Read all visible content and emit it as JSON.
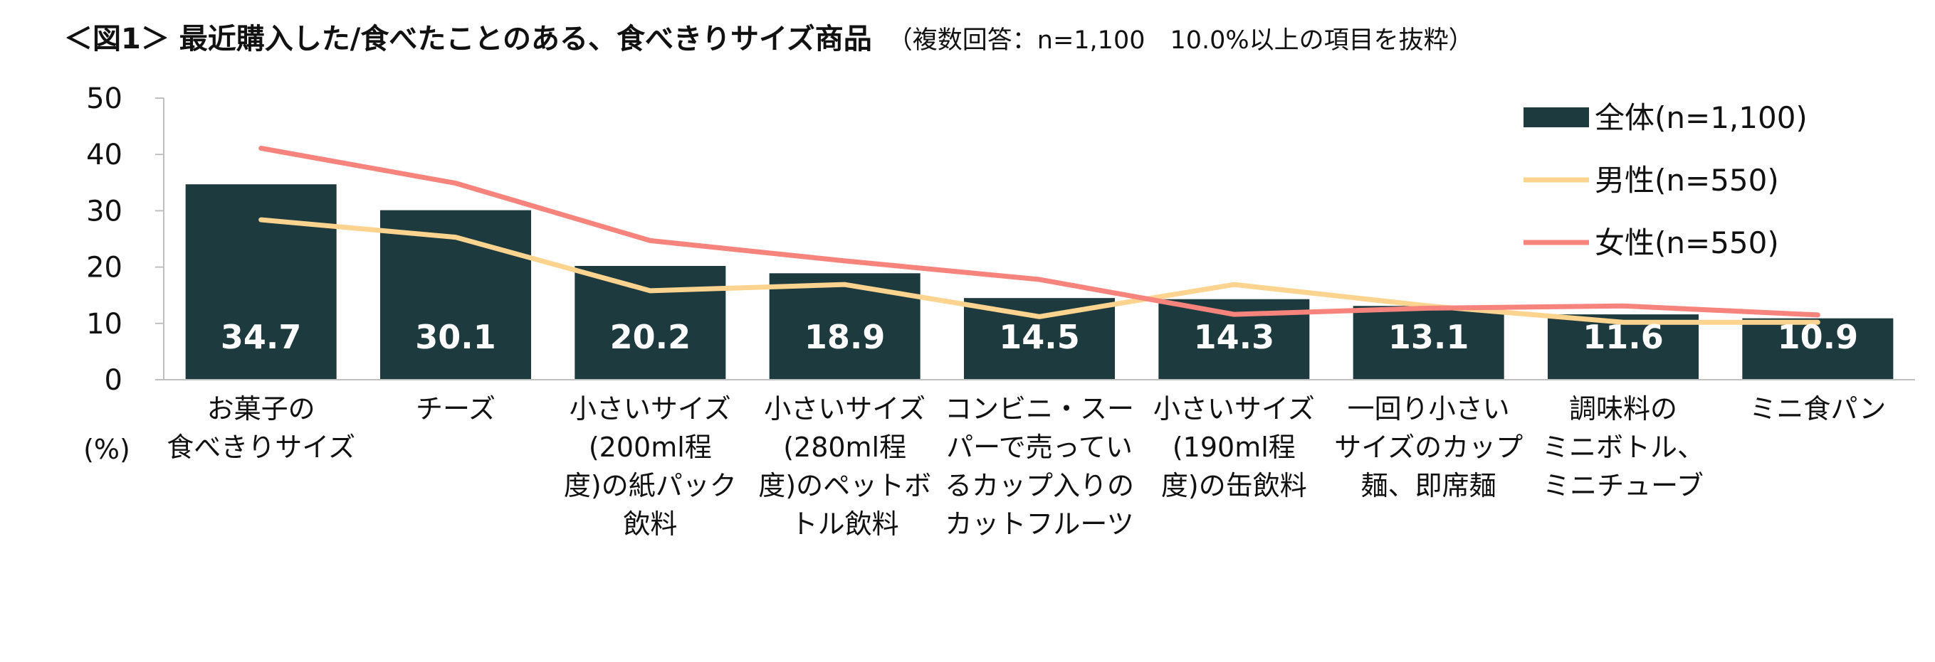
{
  "title": "＜図1＞ 最近購入した/食べたことのある、食べきりサイズ商品",
  "subtitle": "（複数回答：n=1,100　10.0%以上の項目を抜粋）",
  "unit_label": "(%)",
  "colors": {
    "bar": "#1d3a3e",
    "male": "#fcd48f",
    "female": "#f7837d",
    "axis": "#bfbfbf",
    "bar_label": "#ffffff"
  },
  "chart_data": {
    "type": "bar",
    "categories": [
      [
        "お菓子の",
        "食べきりサイズ"
      ],
      [
        "チーズ"
      ],
      [
        "小さいサイズ",
        "(200ml程",
        "度)の紙パック",
        "飲料"
      ],
      [
        "小さいサイズ",
        "(280ml程",
        "度)のペットボ",
        "トル飲料"
      ],
      [
        "コンビニ・スー",
        "パーで売ってい",
        "るカップ入りの",
        "カットフルーツ"
      ],
      [
        "小さいサイズ",
        "(190ml程",
        "度)の缶飲料"
      ],
      [
        "一回り小さい",
        "サイズのカップ",
        "麺、即席麺"
      ],
      [
        "調味料の",
        "ミニボトル、",
        "ミニチューブ"
      ],
      [
        "ミニ食パン"
      ]
    ],
    "series": [
      {
        "name": "全体(n=1,100)",
        "kind": "bar",
        "values": [
          34.7,
          30.1,
          20.2,
          18.9,
          14.5,
          14.3,
          13.1,
          11.6,
          10.9
        ]
      },
      {
        "name": "男性(n=550)",
        "kind": "line",
        "values": [
          28.4,
          25.3,
          15.8,
          16.9,
          11.2,
          16.9,
          13.1,
          10.2,
          10.2
        ]
      },
      {
        "name": "女性(n=550)",
        "kind": "line",
        "values": [
          41.1,
          34.9,
          24.7,
          21.1,
          17.8,
          11.6,
          12.7,
          13.1,
          11.5
        ]
      }
    ],
    "ylim": [
      0,
      50
    ],
    "yticks": [
      0,
      10,
      20,
      30,
      40,
      50
    ],
    "bar_value_labels": [
      "34.7",
      "30.1",
      "20.2",
      "18.9",
      "14.5",
      "14.3",
      "13.1",
      "11.6",
      "10.9"
    ],
    "legend": "top-right",
    "grid": false
  }
}
